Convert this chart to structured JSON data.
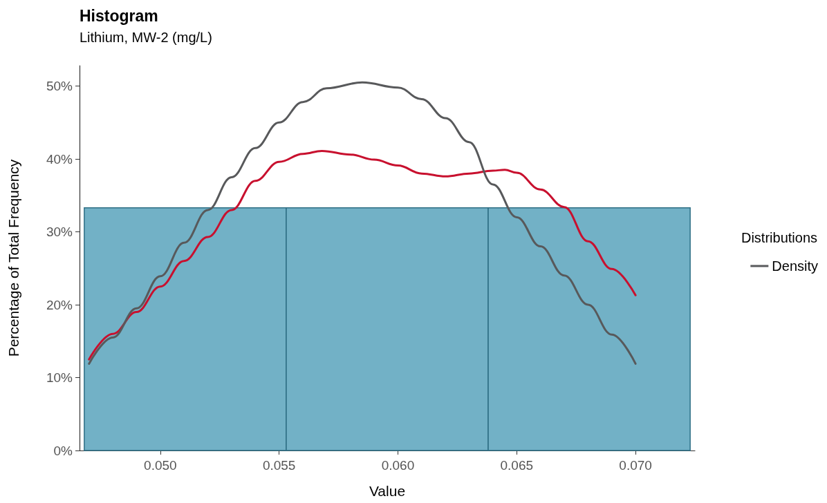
{
  "chart_data": {
    "type": "histogram",
    "title": "Histogram",
    "subtitle": "Lithium, MW-2 (mg/L)",
    "xlabel": "Value",
    "ylabel": "Percentage of Total Frequency",
    "legend_title": "Distributions",
    "legend": "right",
    "grid": false,
    "bins": [
      0.0468,
      0.0553,
      0.0638,
      0.0723
    ],
    "values": [
      33.3,
      33.3,
      33.3
    ],
    "color": "#72b1c6",
    "series": [
      {
        "type": "line",
        "color": "#c8102e",
        "x": [
          0.047,
          0.048,
          0.049,
          0.05,
          0.051,
          0.052,
          0.053,
          0.054,
          0.055,
          0.056,
          0.0568,
          0.058,
          0.059,
          0.06,
          0.061,
          0.062,
          0.063,
          0.064,
          0.0645,
          0.065,
          0.066,
          0.067,
          0.068,
          0.069,
          0.07
        ],
        "values": [
          12.5,
          16.0,
          19.0,
          22.5,
          26.0,
          29.3,
          33.0,
          37.0,
          39.6,
          40.7,
          41.1,
          40.6,
          39.9,
          39.1,
          38.0,
          37.6,
          38.0,
          38.4,
          38.5,
          38.1,
          35.8,
          33.4,
          28.7,
          24.9,
          21.3
        ]
      },
      {
        "type": "line",
        "name": "Density",
        "color": "#58595b",
        "x": [
          0.047,
          0.048,
          0.049,
          0.05,
          0.051,
          0.052,
          0.053,
          0.054,
          0.055,
          0.056,
          0.057,
          0.0585,
          0.06,
          0.061,
          0.062,
          0.063,
          0.064,
          0.065,
          0.066,
          0.067,
          0.068,
          0.069,
          0.07
        ],
        "values": [
          11.9,
          15.5,
          19.5,
          23.9,
          28.5,
          33.0,
          37.5,
          41.5,
          45.0,
          47.8,
          49.7,
          50.5,
          49.8,
          48.2,
          45.6,
          42.3,
          36.5,
          32.0,
          28.0,
          24.0,
          20.0,
          15.9,
          11.9
        ]
      }
    ],
    "xlim": [
      0.0466,
      0.0725
    ],
    "ylim": [
      0,
      52.8
    ],
    "xticks": [
      {
        "value": 0.05,
        "label": "0.050"
      },
      {
        "value": 0.055,
        "label": "0.055"
      },
      {
        "value": 0.06,
        "label": "0.060"
      },
      {
        "value": 0.065,
        "label": "0.065"
      },
      {
        "value": 0.07,
        "label": "0.070"
      }
    ],
    "yticks": [
      {
        "value": 0,
        "label": "0%"
      },
      {
        "value": 10,
        "label": "10%"
      },
      {
        "value": 20,
        "label": "20%"
      },
      {
        "value": 30,
        "label": "30%"
      },
      {
        "value": 40,
        "label": "40%"
      },
      {
        "value": 50,
        "label": "50%"
      }
    ]
  }
}
